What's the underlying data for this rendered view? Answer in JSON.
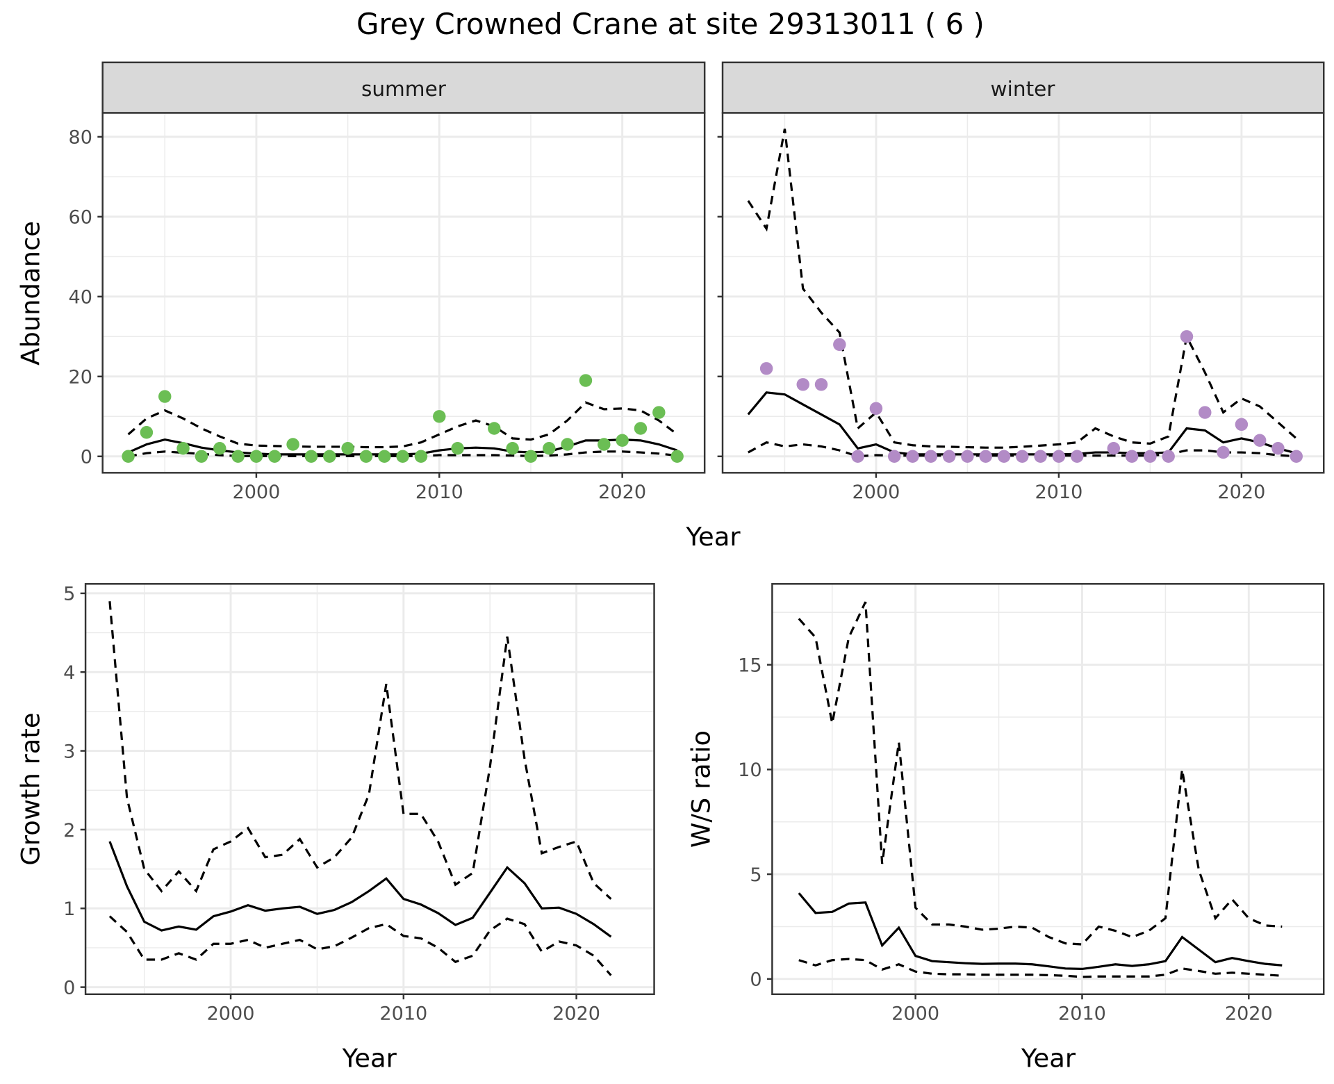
{
  "title": "Grey Crowned Crane at site 29313011 ( 6 )",
  "colors": {
    "summer": "#6BBE54",
    "winter": "#B28BC6",
    "line": "#000000",
    "strip_bg": "#D9D9D9",
    "grid": "#EBEBEB"
  },
  "chart_data": [
    {
      "type": "scatter+line",
      "facet": "summer",
      "xlabel": "Year",
      "ylabel": "Abundance",
      "xlim": [
        1991.6,
        2024.5
      ],
      "ylim": [
        -4.1,
        86
      ],
      "xticks": [
        2000,
        2010,
        2020
      ],
      "yticks": [
        0,
        20,
        40,
        60,
        80
      ],
      "grid": true,
      "points": {
        "x": [
          1993,
          1994,
          1995,
          1996,
          1997,
          1998,
          1999,
          2000,
          2001,
          2002,
          2003,
          2004,
          2005,
          2006,
          2007,
          2008,
          2009,
          2010,
          2011,
          2013,
          2014,
          2015,
          2016,
          2017,
          2018,
          2019,
          2020,
          2021,
          2022,
          2023
        ],
        "y": [
          0,
          6,
          15,
          2,
          0,
          2,
          0,
          0,
          0,
          3,
          0,
          0,
          2,
          0,
          0,
          0,
          0,
          10,
          2,
          7,
          2,
          0,
          2,
          3,
          19,
          3,
          4,
          7,
          11,
          0
        ]
      },
      "years": [
        1993,
        1994,
        1995,
        1996,
        1997,
        1998,
        1999,
        2000,
        2001,
        2002,
        2003,
        2004,
        2005,
        2006,
        2007,
        2008,
        2009,
        2010,
        2011,
        2012,
        2013,
        2014,
        2015,
        2016,
        2017,
        2018,
        2019,
        2020,
        2021,
        2022,
        2023
      ],
      "mean": [
        1,
        3,
        4.2,
        3.3,
        2.2,
        1.5,
        1,
        0.7,
        0.5,
        0.5,
        0.5,
        0.5,
        0.5,
        0.5,
        0.5,
        0.5,
        0.7,
        1.5,
        2,
        2.2,
        2,
        1.2,
        1,
        1.2,
        2.5,
        4,
        4,
        4.2,
        4,
        3,
        1.5
      ],
      "upper": [
        5.5,
        9.5,
        11.5,
        9.5,
        7,
        5,
        3.2,
        2.7,
        2.6,
        2.5,
        2.4,
        2.4,
        2.4,
        2.3,
        2.3,
        2.5,
        3.5,
        5.5,
        7.5,
        9,
        7.5,
        4.5,
        4.2,
        5.5,
        9,
        13.5,
        11.8,
        12,
        11.5,
        9,
        5.5
      ],
      "lower": [
        0,
        0.8,
        1.2,
        0.9,
        0.6,
        0.3,
        0.1,
        0.1,
        0.1,
        0.1,
        0.1,
        0.1,
        0.1,
        0.1,
        0.1,
        0.1,
        0.1,
        0.3,
        0.3,
        0.3,
        0.3,
        0.2,
        0.1,
        0.2,
        0.5,
        1,
        1.2,
        1.2,
        1,
        0.7,
        0.2
      ]
    },
    {
      "type": "scatter+line",
      "facet": "winter",
      "xlabel": "Year",
      "ylabel": "Abundance",
      "xlim": [
        1991.6,
        2024.5
      ],
      "ylim": [
        -4.1,
        86
      ],
      "xticks": [
        2000,
        2010,
        2020
      ],
      "yticks": [
        0,
        20,
        40,
        60,
        80
      ],
      "grid": true,
      "points": {
        "x": [
          1994,
          1996,
          1997,
          1998,
          1999,
          2000,
          2001,
          2002,
          2003,
          2004,
          2005,
          2006,
          2007,
          2008,
          2009,
          2010,
          2011,
          2013,
          2014,
          2015,
          2016,
          2017,
          2018,
          2019,
          2020,
          2021,
          2022,
          2023
        ],
        "y": [
          22,
          18,
          18,
          28,
          0,
          12,
          0,
          0,
          0,
          0,
          0,
          0,
          0,
          0,
          0,
          0,
          0,
          2,
          0,
          0,
          0,
          30,
          11,
          1,
          8,
          4,
          2,
          0
        ]
      },
      "years": [
        1993,
        1994,
        1995,
        1996,
        1997,
        1998,
        1999,
        2000,
        2001,
        2002,
        2003,
        2004,
        2005,
        2006,
        2007,
        2008,
        2009,
        2010,
        2011,
        2012,
        2013,
        2014,
        2015,
        2016,
        2017,
        2018,
        2019,
        2020,
        2021,
        2022,
        2023
      ],
      "mean": [
        10.5,
        16,
        15.5,
        13,
        10.5,
        8,
        2,
        3,
        1,
        0.5,
        0.5,
        0.5,
        0.5,
        0.5,
        0.5,
        0.5,
        0.5,
        0.5,
        0.6,
        1,
        1,
        0.8,
        0.8,
        1,
        7,
        6.5,
        3.5,
        4.5,
        3.5,
        2,
        0.8
      ],
      "upper": [
        64,
        57,
        82,
        42,
        36,
        31,
        7,
        11,
        3.5,
        2.8,
        2.5,
        2.4,
        2.3,
        2.2,
        2.2,
        2.4,
        2.7,
        3,
        3.5,
        7,
        5,
        3.5,
        3.2,
        5,
        30,
        21,
        11,
        14.5,
        12.5,
        8.5,
        4.5
      ],
      "lower": [
        1,
        3.5,
        2.5,
        3,
        2.5,
        1.5,
        0,
        0.3,
        0.2,
        0.2,
        0.2,
        0.2,
        0.2,
        0.2,
        0.2,
        0.2,
        0.2,
        0.2,
        0.2,
        0.2,
        0.2,
        0.2,
        0.2,
        0.5,
        1.5,
        1.5,
        1,
        1,
        0.8,
        0.3,
        0
      ]
    },
    {
      "type": "line",
      "xlabel": "Year",
      "ylabel": "Growth rate",
      "xlim": [
        1991.6,
        2024.5
      ],
      "ylim": [
        -0.09,
        5.12
      ],
      "xticks": [
        2000,
        2010,
        2020
      ],
      "yticks": [
        0,
        1,
        2,
        3,
        4,
        5
      ],
      "grid": true,
      "years": [
        1993,
        1994,
        1995,
        1996,
        1997,
        1998,
        1999,
        2000,
        2001,
        2002,
        2003,
        2004,
        2005,
        2006,
        2007,
        2008,
        2009,
        2010,
        2011,
        2012,
        2013,
        2014,
        2015,
        2016,
        2017,
        2018,
        2019,
        2020,
        2021,
        2022
      ],
      "mean": [
        1.85,
        1.28,
        0.83,
        0.72,
        0.77,
        0.73,
        0.9,
        0.96,
        1.04,
        0.97,
        1.0,
        1.02,
        0.93,
        0.98,
        1.08,
        1.22,
        1.38,
        1.12,
        1.05,
        0.94,
        0.79,
        0.88,
        1.2,
        1.52,
        1.32,
        1.0,
        1.01,
        0.93,
        0.8,
        0.64
      ],
      "upper": [
        4.9,
        2.4,
        1.5,
        1.22,
        1.47,
        1.22,
        1.75,
        1.85,
        2.02,
        1.65,
        1.68,
        1.88,
        1.52,
        1.65,
        1.9,
        2.45,
        3.85,
        2.2,
        2.2,
        1.85,
        1.3,
        1.45,
        2.8,
        4.45,
        2.9,
        1.7,
        1.78,
        1.85,
        1.32,
        1.12
      ],
      "lower": [
        0.9,
        0.7,
        0.35,
        0.35,
        0.43,
        0.35,
        0.55,
        0.55,
        0.6,
        0.5,
        0.55,
        0.6,
        0.48,
        0.52,
        0.63,
        0.75,
        0.8,
        0.65,
        0.62,
        0.5,
        0.32,
        0.4,
        0.72,
        0.87,
        0.8,
        0.45,
        0.58,
        0.53,
        0.4,
        0.15
      ]
    },
    {
      "type": "line",
      "xlabel": "Year",
      "ylabel": "W/S ratio",
      "xlim": [
        1991.4,
        2024.5
      ],
      "ylim": [
        -0.73,
        18.86
      ],
      "xticks": [
        2000,
        2010,
        2020
      ],
      "yticks": [
        0,
        5,
        10,
        15
      ],
      "grid": true,
      "years": [
        1993,
        1994,
        1995,
        1996,
        1997,
        1998,
        1999,
        2000,
        2001,
        2002,
        2003,
        2004,
        2005,
        2006,
        2007,
        2008,
        2009,
        2010,
        2011,
        2012,
        2013,
        2014,
        2015,
        2016,
        2017,
        2018,
        2019,
        2020,
        2021,
        2022
      ],
      "mean": [
        4.1,
        3.15,
        3.2,
        3.6,
        3.65,
        1.6,
        2.45,
        1.1,
        0.85,
        0.8,
        0.75,
        0.72,
        0.73,
        0.73,
        0.7,
        0.6,
        0.5,
        0.48,
        0.58,
        0.7,
        0.62,
        0.7,
        0.85,
        2.0,
        1.4,
        0.8,
        1.0,
        0.85,
        0.72,
        0.65
      ],
      "upper": [
        17.2,
        16.3,
        12.2,
        16.3,
        18.0,
        5.5,
        11.3,
        3.4,
        2.6,
        2.6,
        2.5,
        2.35,
        2.4,
        2.5,
        2.45,
        2.0,
        1.7,
        1.65,
        2.5,
        2.3,
        2.0,
        2.3,
        2.9,
        10.0,
        5.2,
        2.9,
        3.8,
        2.9,
        2.55,
        2.5
      ],
      "lower": [
        0.9,
        0.65,
        0.9,
        0.95,
        0.9,
        0.45,
        0.7,
        0.35,
        0.25,
        0.22,
        0.22,
        0.2,
        0.2,
        0.2,
        0.2,
        0.18,
        0.15,
        0.1,
        0.12,
        0.12,
        0.12,
        0.12,
        0.2,
        0.5,
        0.38,
        0.25,
        0.3,
        0.25,
        0.2,
        0.15
      ]
    }
  ]
}
